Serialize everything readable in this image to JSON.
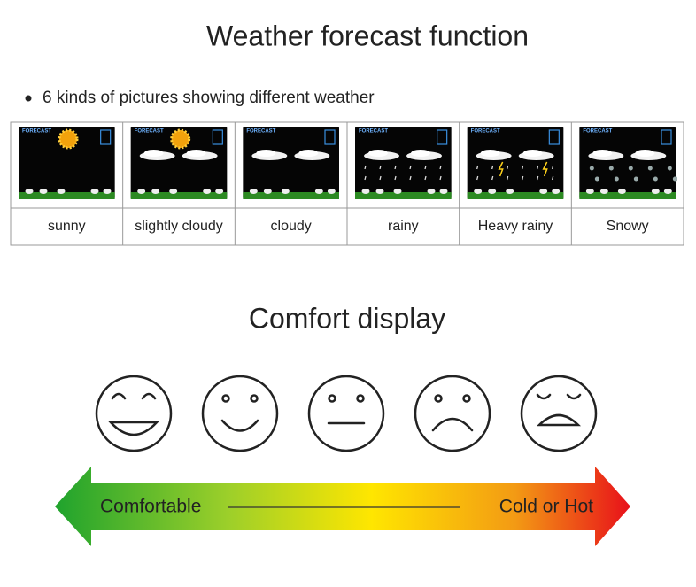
{
  "header": {
    "title": "Weather forecast function",
    "bullet": "6 kinds of pictures showing different weather"
  },
  "weather_table": {
    "cells": [
      {
        "screen_label": "FORECAST",
        "caption": "sunny"
      },
      {
        "screen_label": "FORECAST",
        "caption": "slightly cloudy"
      },
      {
        "screen_label": "FORECAST",
        "caption": "cloudy"
      },
      {
        "screen_label": "FORECAST",
        "caption": "rainy"
      },
      {
        "screen_label": "FORECAST",
        "caption": "Heavy rainy"
      },
      {
        "screen_label": "FORECAST",
        "caption": "Snowy"
      }
    ]
  },
  "comfort": {
    "title": "Comfort display",
    "left_label": "Comfortable",
    "right_label": "Cold or Hot"
  }
}
